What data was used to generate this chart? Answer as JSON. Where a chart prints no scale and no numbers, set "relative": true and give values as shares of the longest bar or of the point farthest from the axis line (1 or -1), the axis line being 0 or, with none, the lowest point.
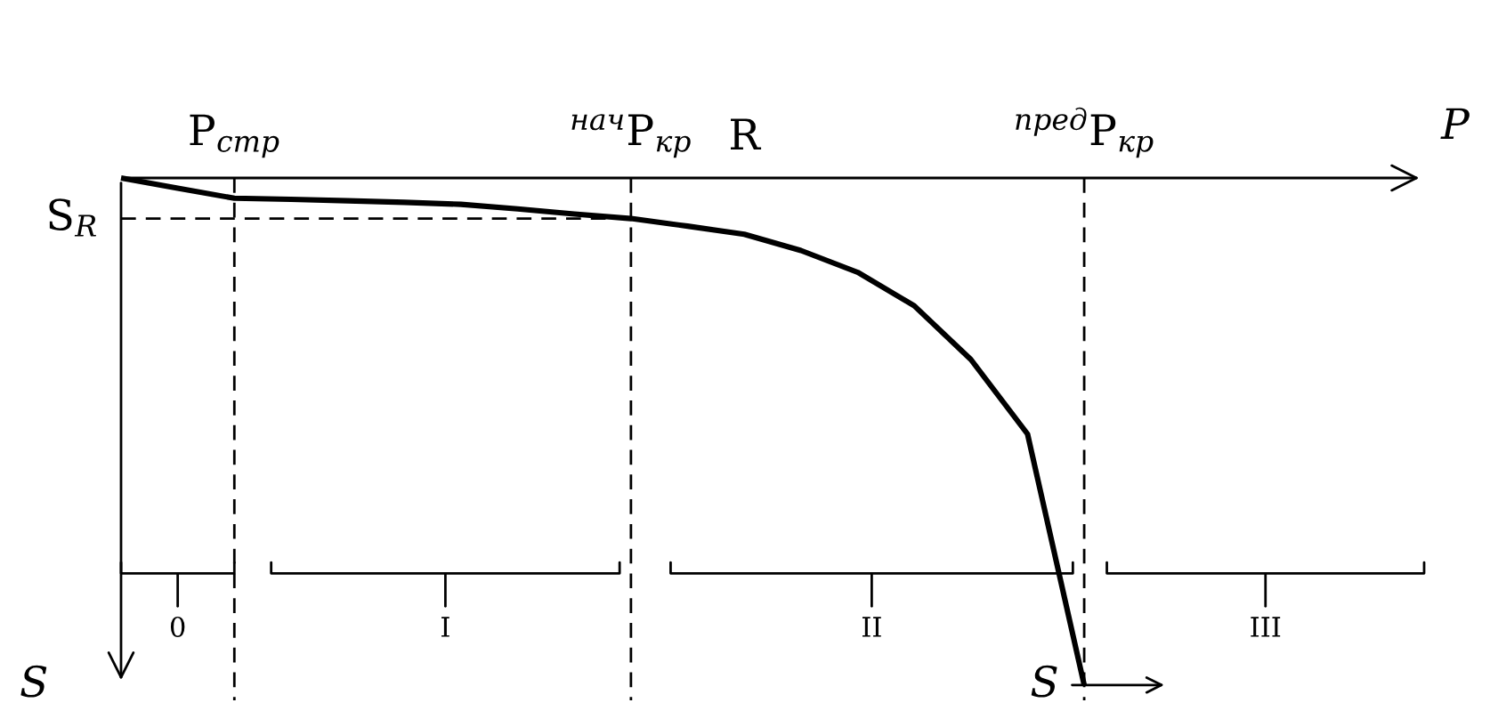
{
  "chart_data": {
    "type": "line",
    "relative": true,
    "xlabel": "P",
    "ylabel": "S",
    "legend": false,
    "grid": false,
    "marker": "none",
    "line_style": "solid",
    "categories": [
      null,
      null,
      "P$_{стр}$",
      null,
      null,
      null,
      null,
      null,
      null,
      "$^{нач}$P$_{кр}$",
      null,
      "R",
      null,
      null,
      null,
      null,
      null,
      "$^{пред}$P$_{кр}$",
      null,
      null,
      null,
      null,
      null,
      null
    ],
    "series": [
      {
        "color": "#000000",
        "values": [
          0,
          -0.02,
          -0.04,
          -0.042,
          -0.045,
          -0.048,
          -0.052,
          -0.061,
          -0.071,
          -0.08,
          -0.095,
          -0.111,
          -0.143,
          -0.186,
          -0.252,
          -0.358,
          -0.505,
          -1.0,
          null,
          null,
          null,
          null,
          null,
          null
        ]
      }
    ],
    "ref_lines": [
      {
        "axis": "x",
        "value": "P$_{стр}$",
        "line_style": "dashed",
        "color": "#000000"
      },
      {
        "axis": "x",
        "value": "$^{нач}$P$_{кр}$",
        "line_style": "dashed",
        "color": "#000000"
      },
      {
        "axis": "x",
        "value": "$^{пред}$P$_{кр}$",
        "line_style": "dashed",
        "color": "#000000"
      },
      {
        "axis": "y",
        "value": -0.08,
        "label": "S$_{R}$",
        "line_style": "dashed",
        "color": "#000000"
      }
    ],
    "annotations": [
      "0",
      "I",
      "II",
      "III",
      "S"
    ]
  }
}
